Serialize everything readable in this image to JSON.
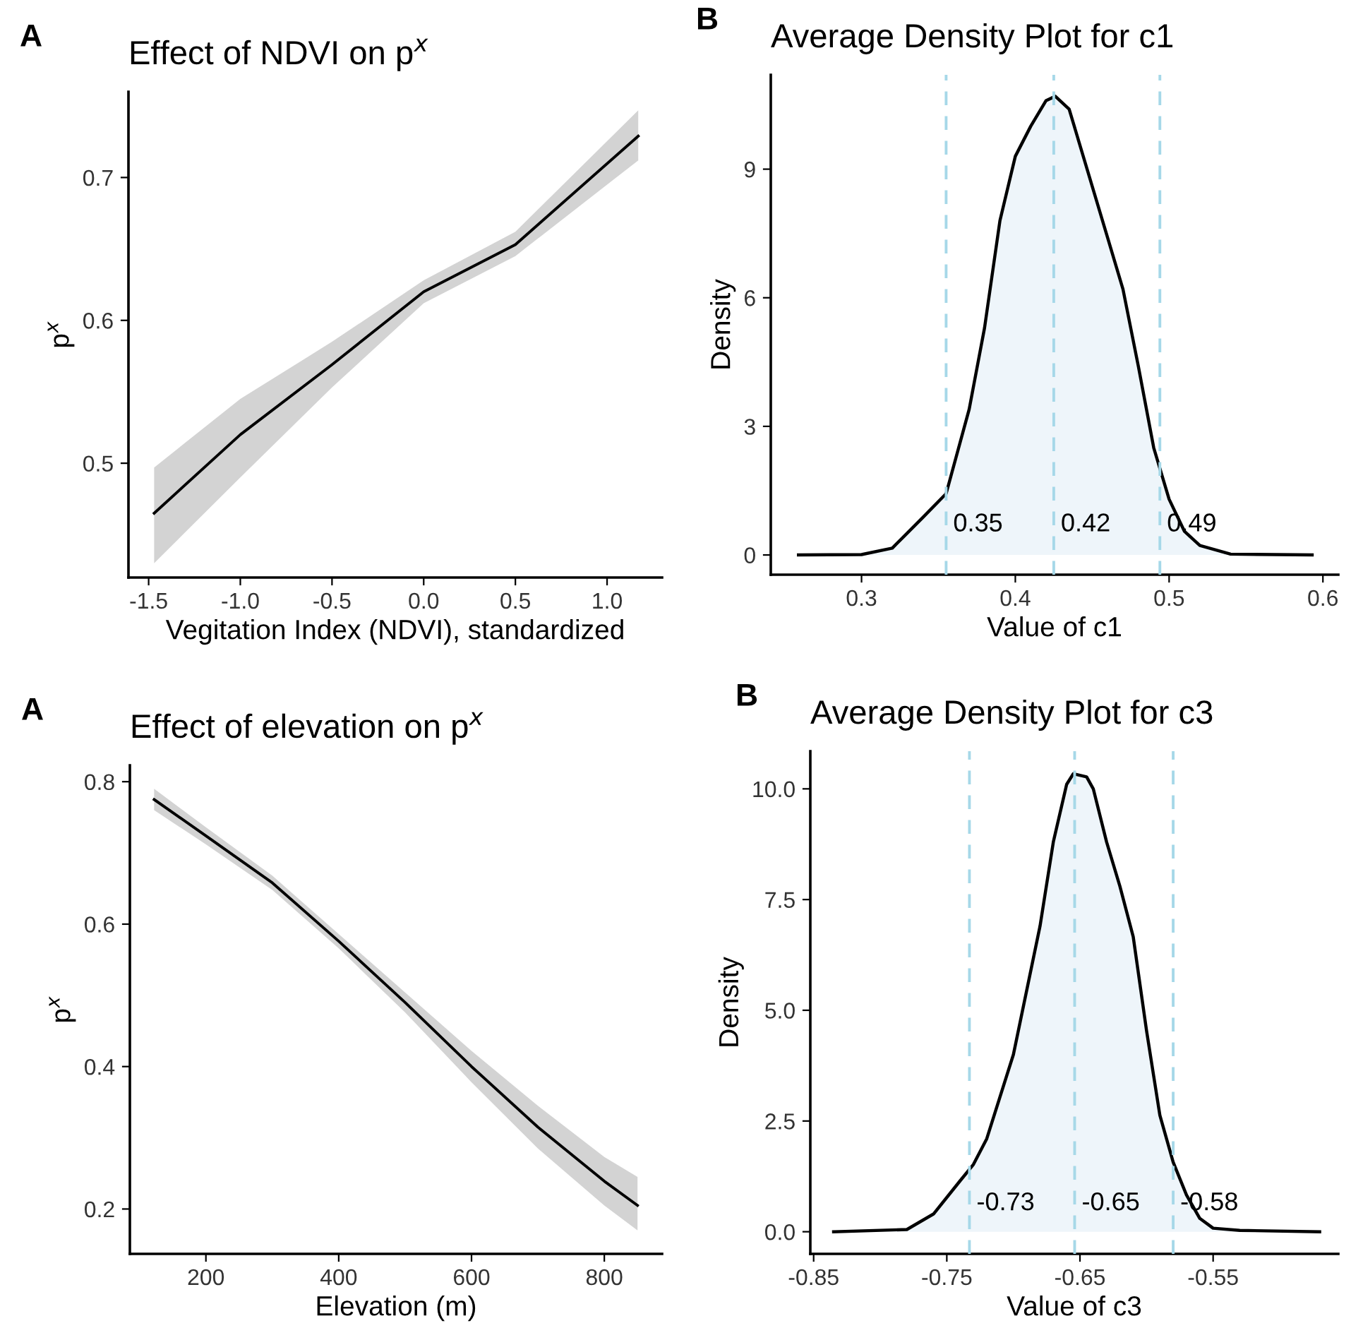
{
  "chart_data": [
    {
      "type": "line",
      "title": "Effect of NDVI on p$^{x}$",
      "xlabel": "Vegitation Index (NDVI), standardized",
      "ylabel": "p$^{x}$",
      "annotations": [
        "A"
      ],
      "x": [
        -1.47,
        -1.0,
        -0.5,
        0.0,
        0.5,
        1.17
      ],
      "series": [
        {
          "color": "#000000",
          "values": [
            0.465,
            0.52,
            0.569,
            0.62,
            0.653,
            0.729
          ],
          "lower": [
            0.43,
            0.49,
            0.553,
            0.612,
            0.645,
            0.712
          ],
          "upper": [
            0.497,
            0.545,
            0.585,
            0.628,
            0.662,
            0.747
          ]
        }
      ],
      "xlim": [
        -1.61,
        1.3
      ],
      "ylim": [
        0.42,
        0.76
      ],
      "xticks": [
        {
          "value": -1.5,
          "label": "-1.5"
        },
        {
          "value": -1.0,
          "label": "-1.0"
        },
        {
          "value": -0.5,
          "label": "-0.5"
        },
        {
          "value": 0.0,
          "label": "0.0"
        },
        0.5,
        {
          "value": 1.0,
          "label": "1.0"
        }
      ],
      "yticks": [
        0.5,
        0.6,
        0.7
      ],
      "grid": false
    },
    {
      "type": "area",
      "title": "Average Density Plot for c1",
      "xlabel": "Value of c1",
      "ylabel": "Density",
      "annotations": [
        "B"
      ],
      "x": [
        0.259,
        0.3,
        0.32,
        0.34,
        0.355,
        0.37,
        0.38,
        0.39,
        0.4,
        0.41,
        0.42,
        0.426,
        0.435,
        0.45,
        0.46,
        0.47,
        0.48,
        0.49,
        0.5,
        0.51,
        0.52,
        0.54,
        0.593
      ],
      "series": [
        {
          "color": "#000000",
          "values": [
            0,
            0.01,
            0.16,
            0.88,
            1.43,
            3.4,
            5.3,
            7.8,
            9.3,
            10.0,
            10.6,
            10.7,
            10.4,
            8.6,
            7.4,
            6.2,
            4.4,
            2.5,
            1.3,
            0.55,
            0.22,
            0.02,
            0
          ]
        }
      ],
      "ref_lines": [
        {
          "axis": "x",
          "value": 0.355,
          "label": "0.35",
          "color": "#a6d8e8",
          "line_style": "dashed"
        },
        {
          "axis": "x",
          "value": 0.425,
          "label": "0.42",
          "color": "#a6d8e8",
          "line_style": "dashed"
        },
        {
          "axis": "x",
          "value": 0.494,
          "label": "0.49",
          "color": "#a6d8e8",
          "line_style": "dashed"
        }
      ],
      "xlim": [
        0.241,
        0.61
      ],
      "ylim": [
        -0.46,
        11.2
      ],
      "xticks": [
        0.3,
        0.4,
        0.5,
        0.6
      ],
      "yticks": [
        0,
        3,
        6,
        9
      ],
      "grid": false
    },
    {
      "type": "line",
      "title": "Effect of elevation on p$^{x}$",
      "xlabel": "Elevation (m)",
      "ylabel": "p$^{x}$",
      "annotations": [
        "A"
      ],
      "x": [
        122,
        200,
        300,
        400,
        500,
        600,
        700,
        800,
        850
      ],
      "series": [
        {
          "color": "#000000",
          "values": [
            0.775,
            0.724,
            0.658,
            0.576,
            0.49,
            0.4,
            0.315,
            0.239,
            0.205
          ],
          "lower": [
            0.76,
            0.712,
            0.648,
            0.566,
            0.476,
            0.378,
            0.285,
            0.205,
            0.17
          ],
          "upper": [
            0.79,
            0.736,
            0.668,
            0.586,
            0.504,
            0.422,
            0.345,
            0.273,
            0.245
          ]
        }
      ],
      "xlim": [
        85.5,
        887
      ],
      "ylim": [
        0.137,
        0.823
      ],
      "xticks": [
        200,
        400,
        600,
        800
      ],
      "yticks": [
        0.2,
        0.4,
        0.6,
        0.8
      ],
      "grid": false
    },
    {
      "type": "area",
      "title": "Average Density Plot for c3",
      "xlabel": "Value of c3",
      "ylabel": "Density",
      "annotations": [
        "B"
      ],
      "x": [
        -0.835,
        -0.78,
        -0.76,
        -0.74,
        -0.73,
        -0.72,
        -0.7,
        -0.68,
        -0.67,
        -0.66,
        -0.655,
        -0.645,
        -0.64,
        -0.63,
        -0.62,
        -0.61,
        -0.6,
        -0.59,
        -0.58,
        -0.57,
        -0.56,
        -0.55,
        -0.53,
        -0.47
      ],
      "series": [
        {
          "color": "#000000",
          "values": [
            0,
            0.05,
            0.4,
            1.15,
            1.52,
            2.1,
            4.0,
            6.9,
            8.8,
            10.1,
            10.34,
            10.27,
            10.0,
            8.8,
            7.8,
            6.66,
            4.54,
            2.63,
            1.57,
            0.83,
            0.3,
            0.08,
            0.03,
            0
          ]
        }
      ],
      "ref_lines": [
        {
          "axis": "x",
          "value": -0.733,
          "label": "-0.73",
          "color": "#a6d8e8",
          "line_style": "dashed"
        },
        {
          "axis": "x",
          "value": -0.654,
          "label": "-0.65",
          "color": "#a6d8e8",
          "line_style": "dashed"
        },
        {
          "axis": "x",
          "value": -0.58,
          "label": "-0.58",
          "color": "#a6d8e8",
          "line_style": "dashed"
        }
      ],
      "xlim": [
        -0.8525,
        -0.456
      ],
      "ylim": [
        -0.5,
        10.85
      ],
      "xticks": [
        -0.85,
        -0.75,
        -0.65,
        -0.55
      ],
      "yticks": [
        {
          "value": 0,
          "label": "0.0"
        },
        2.5,
        {
          "value": 5,
          "label": "5.0"
        },
        7.5,
        {
          "value": 10,
          "label": "10.0"
        }
      ],
      "grid": false
    }
  ]
}
